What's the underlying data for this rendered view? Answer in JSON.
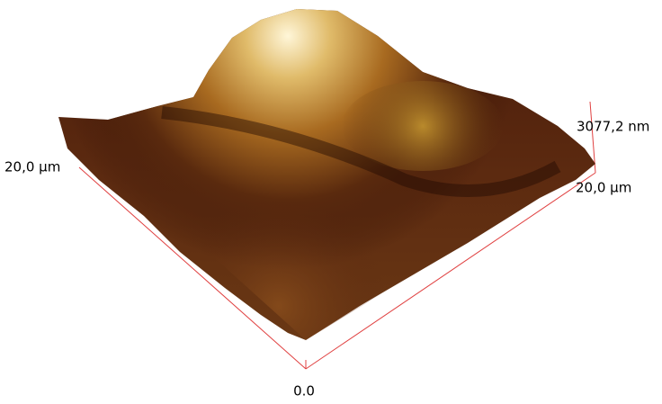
{
  "labels": {
    "x_extent": "20,0 µm",
    "y_extent": "20,0 µm",
    "z_extent": "3077,2 nm",
    "origin": "0.0"
  }
}
